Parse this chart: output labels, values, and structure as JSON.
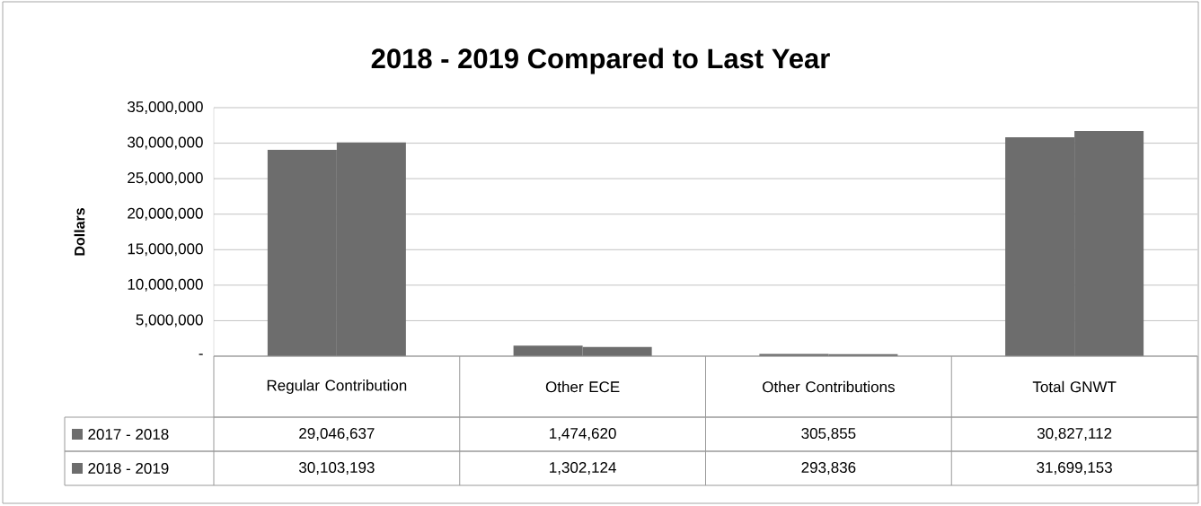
{
  "chart_data": {
    "type": "bar",
    "title": "2018 - 2019  Compared to Last Year",
    "ylabel": "Dollars",
    "categories": [
      "Regular Contribution",
      "Other ECE",
      "Other Contributions",
      "Total GNWT"
    ],
    "series": [
      {
        "name": "2017 - 2018",
        "color": "#6d6d6d",
        "values": [
          29046637,
          1474620,
          305855,
          30827112
        ],
        "value_labels": [
          "29,046,637",
          "1,474,620",
          "305,855",
          "30,827,112"
        ]
      },
      {
        "name": "2018 - 2019",
        "color": "#6d6d6d",
        "values": [
          30103193,
          1302124,
          293836,
          31699153
        ],
        "value_labels": [
          "30,103,193",
          "1,302,124",
          "293,836",
          "31,699,153"
        ]
      }
    ],
    "ylim": [
      0,
      35000000
    ],
    "yticks": [
      {
        "value": 0,
        "label": "-"
      },
      {
        "value": 5000000,
        "label": "5,000,000"
      },
      {
        "value": 10000000,
        "label": "10,000,000"
      },
      {
        "value": 15000000,
        "label": "15,000,000"
      },
      {
        "value": 20000000,
        "label": "20,000,000"
      },
      {
        "value": 25000000,
        "label": "25,000,000"
      },
      {
        "value": 30000000,
        "label": "30,000,000"
      },
      {
        "value": 35000000,
        "label": "35,000,000"
      }
    ],
    "grid": "y",
    "legend": "bottom left"
  }
}
